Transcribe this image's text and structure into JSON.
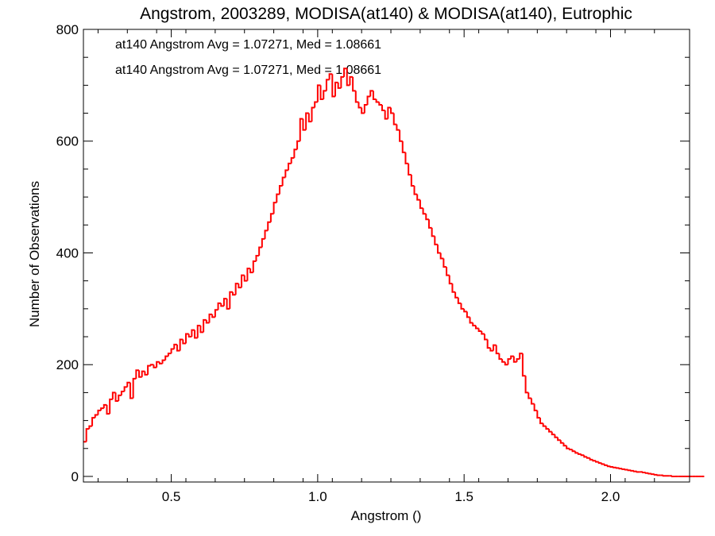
{
  "chart_data": {
    "type": "histogram",
    "title": "Angstrom, 2003289, MODISA(at140) & MODISA(at140), Eutrophic",
    "xlabel": "Angstrom ()",
    "ylabel": "Number of Observations",
    "xlim": [
      0.2,
      2.27
    ],
    "ylim": [
      -10,
      800
    ],
    "x_ticks": [
      0.5,
      1.0,
      1.5,
      2.0
    ],
    "x_tick_labels": [
      "0.5",
      "1.0",
      "1.5",
      "2.0"
    ],
    "y_ticks": [
      0,
      200,
      400,
      600,
      800
    ],
    "y_tick_labels": [
      "0",
      "200",
      "400",
      "600",
      "800"
    ],
    "grid": false,
    "bin_start": 0.2,
    "bin_width": 0.01,
    "annotations": [
      {
        "text": "at140 Angstrom Avg = 1.07271, Med = 1.08661",
        "color": "#000000"
      },
      {
        "text": "at140 Angstrom Avg = 1.07271, Med = 1.08661",
        "color": "#ff0000"
      }
    ],
    "series": [
      {
        "color": "#ff0000",
        "values": [
          62,
          85,
          90,
          105,
          110,
          118,
          122,
          128,
          112,
          138,
          150,
          135,
          145,
          152,
          160,
          168,
          140,
          175,
          190,
          178,
          188,
          182,
          198,
          200,
          195,
          205,
          202,
          208,
          215,
          220,
          228,
          236,
          225,
          245,
          238,
          255,
          250,
          262,
          248,
          270,
          258,
          280,
          275,
          290,
          285,
          298,
          310,
          305,
          318,
          300,
          330,
          325,
          345,
          338,
          360,
          350,
          372,
          365,
          385,
          395,
          410,
          425,
          440,
          455,
          470,
          490,
          505,
          520,
          535,
          548,
          560,
          570,
          585,
          600,
          640,
          620,
          650,
          635,
          660,
          670,
          700,
          675,
          690,
          710,
          720,
          680,
          705,
          695,
          715,
          730,
          700,
          715,
          690,
          670,
          660,
          650,
          665,
          680,
          690,
          675,
          670,
          665,
          655,
          640,
          660,
          650,
          630,
          620,
          600,
          580,
          560,
          540,
          520,
          505,
          495,
          480,
          470,
          460,
          445,
          430,
          415,
          400,
          390,
          375,
          360,
          345,
          330,
          320,
          310,
          300,
          295,
          285,
          275,
          270,
          265,
          260,
          255,
          245,
          230,
          225,
          235,
          220,
          210,
          205,
          200,
          210,
          215,
          205,
          210,
          220,
          180,
          150,
          140,
          130,
          118,
          105,
          95,
          90,
          85,
          80,
          75,
          70,
          65,
          60,
          55,
          50,
          48,
          45,
          42,
          40,
          38,
          35,
          33,
          30,
          28,
          26,
          24,
          22,
          20,
          18,
          17,
          16,
          15,
          14,
          13,
          12,
          11,
          10,
          9,
          8,
          8,
          7,
          6,
          5,
          4,
          3,
          2,
          2,
          1,
          1,
          1,
          0,
          0,
          0,
          0,
          0,
          0,
          0,
          0,
          0,
          0,
          0
        ]
      }
    ]
  }
}
